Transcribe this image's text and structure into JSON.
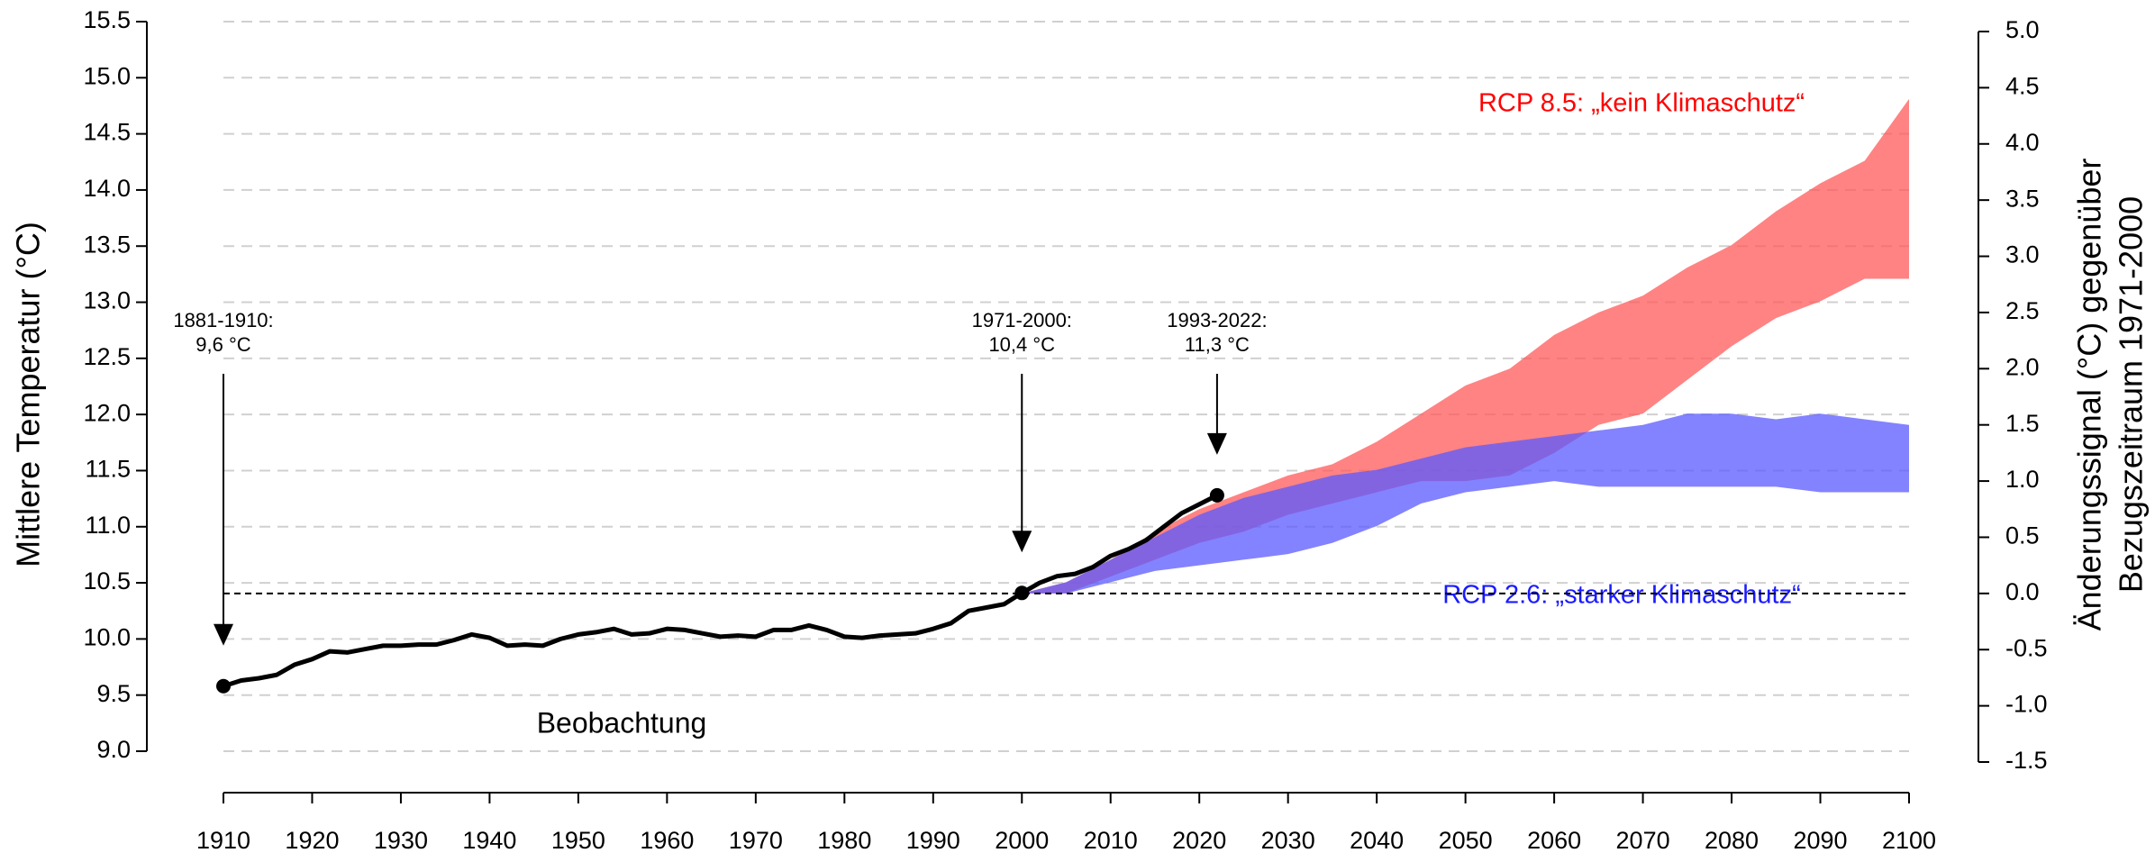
{
  "chart_data": {
    "type": "line",
    "ylabel": "Mittlere Temperatur (°C)",
    "y2label": [
      "Änderungssignal (°C) gegenüber",
      "Bezugszeitraum 1971-2000"
    ],
    "xlim": [
      1910,
      2100
    ],
    "xticks": [
      1910,
      1920,
      1930,
      1940,
      1950,
      1960,
      1970,
      1980,
      1990,
      2000,
      2010,
      2020,
      2030,
      2040,
      2050,
      2060,
      2070,
      2080,
      2090,
      2100
    ],
    "ylim": [
      9,
      15.5
    ],
    "yticks": [
      {
        "value": 9,
        "label": "9.0"
      },
      9.5,
      {
        "value": 10,
        "label": "10.0"
      },
      10.5,
      {
        "value": 11,
        "label": "11.0"
      },
      11.5,
      {
        "value": 12,
        "label": "12.0"
      },
      12.5,
      {
        "value": 13,
        "label": "13.0"
      },
      13.5,
      {
        "value": 14,
        "label": "14.0"
      },
      14.5,
      {
        "value": 15,
        "label": "15.0"
      },
      15.5
    ],
    "y2lim": [
      -1.5,
      5
    ],
    "y2ticks": [
      -1.5,
      {
        "value": -1,
        "label": "-1.0"
      },
      -0.5,
      {
        "value": 0,
        "label": "0.0"
      },
      0.5,
      {
        "value": 1,
        "label": "1.0"
      },
      1.5,
      {
        "value": 2,
        "label": "2.0"
      },
      2.5,
      {
        "value": 3,
        "label": "3.0"
      },
      3.5,
      {
        "value": 4,
        "label": "4.0"
      },
      4.5,
      {
        "value": 5,
        "label": "5.0"
      }
    ],
    "grid": true,
    "reference_y2": 0,
    "observations": {
      "name": "Beobachtung",
      "color": "#000000",
      "x": [
        1910,
        1912,
        1914,
        1916,
        1918,
        1920,
        1922,
        1924,
        1926,
        1928,
        1930,
        1932,
        1934,
        1936,
        1938,
        1940,
        1942,
        1944,
        1946,
        1948,
        1950,
        1952,
        1954,
        1956,
        1958,
        1960,
        1962,
        1964,
        1966,
        1968,
        1970,
        1972,
        1974,
        1976,
        1978,
        1980,
        1982,
        1984,
        1986,
        1988,
        1990,
        1992,
        1994,
        1996,
        1998,
        2000,
        2002,
        2004,
        2006,
        2008,
        2010,
        2012,
        2014,
        2016,
        2018,
        2020,
        2022
      ],
      "values": [
        9.58,
        9.63,
        9.65,
        9.68,
        9.77,
        9.82,
        9.89,
        9.88,
        9.91,
        9.94,
        9.94,
        9.95,
        9.95,
        9.99,
        10.04,
        10.01,
        9.94,
        9.95,
        9.94,
        10.0,
        10.04,
        10.06,
        10.09,
        10.04,
        10.05,
        10.09,
        10.08,
        10.05,
        10.02,
        10.03,
        10.02,
        10.08,
        10.08,
        10.12,
        10.08,
        10.02,
        10.01,
        10.03,
        10.04,
        10.05,
        10.09,
        10.14,
        10.25,
        10.28,
        10.31,
        10.41,
        10.5,
        10.56,
        10.58,
        10.64,
        10.74,
        10.8,
        10.88,
        11.0,
        11.12,
        11.2,
        11.28
      ]
    },
    "series": [
      {
        "name": "RCP 8.5: „kein Klimaschutz“",
        "color": "#ff5a5a",
        "label_color": "#ff0000",
        "opacity": 0.75,
        "axis": "y2",
        "x": [
          2000,
          2005,
          2010,
          2015,
          2020,
          2025,
          2030,
          2035,
          2040,
          2045,
          2050,
          2055,
          2060,
          2065,
          2070,
          2075,
          2080,
          2085,
          2090,
          2095,
          2100
        ],
        "upper": [
          0.0,
          0.1,
          0.3,
          0.55,
          0.75,
          0.9,
          1.05,
          1.15,
          1.35,
          1.6,
          1.85,
          2.0,
          2.3,
          2.5,
          2.65,
          2.9,
          3.1,
          3.4,
          3.65,
          3.85,
          4.4
        ],
        "lower": [
          0.0,
          0.0,
          0.15,
          0.3,
          0.45,
          0.55,
          0.7,
          0.8,
          0.9,
          1.0,
          1.0,
          1.05,
          1.25,
          1.5,
          1.6,
          1.9,
          2.2,
          2.45,
          2.6,
          2.8,
          2.8
        ]
      },
      {
        "name": "RCP 2.6: „starker Klimaschutz“",
        "color": "#5a5aff",
        "label_color": "#1a1aff",
        "opacity": 0.75,
        "axis": "y2",
        "x": [
          2000,
          2005,
          2010,
          2015,
          2020,
          2025,
          2030,
          2035,
          2040,
          2045,
          2050,
          2055,
          2060,
          2065,
          2070,
          2075,
          2080,
          2085,
          2090,
          2095,
          2100
        ],
        "upper": [
          0.0,
          0.1,
          0.3,
          0.5,
          0.7,
          0.85,
          0.95,
          1.05,
          1.1,
          1.2,
          1.3,
          1.35,
          1.4,
          1.45,
          1.5,
          1.6,
          1.6,
          1.55,
          1.6,
          1.55,
          1.5
        ],
        "lower": [
          0.0,
          0.0,
          0.1,
          0.2,
          0.25,
          0.3,
          0.35,
          0.45,
          0.6,
          0.8,
          0.9,
          0.95,
          1.0,
          0.95,
          0.95,
          0.95,
          0.95,
          0.95,
          0.9,
          0.9,
          0.9
        ]
      }
    ],
    "annotations": [
      {
        "lines": [
          "1881-1910:",
          "9,6 °C"
        ],
        "x": 1910
      },
      {
        "lines": [
          "1971-2000:",
          "10,4 °C"
        ],
        "x": 2000
      },
      {
        "lines": [
          "1993-2022:",
          "11,3 °C"
        ],
        "x": 2022
      }
    ]
  }
}
